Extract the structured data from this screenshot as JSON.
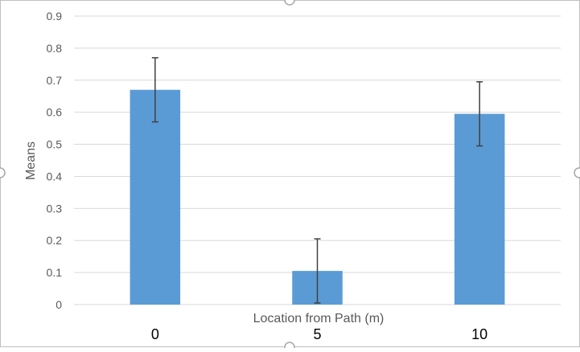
{
  "chart_data": {
    "type": "bar",
    "categories": [
      "0",
      "5",
      "10"
    ],
    "values": [
      0.67,
      0.105,
      0.595
    ],
    "error": [
      0.1,
      0.1,
      0.1
    ],
    "title": "",
    "xlabel": "Location from Path (m)",
    "ylabel": "Means",
    "ylim": [
      0,
      0.9
    ],
    "yticks": [
      "0",
      "0.1",
      "0.2",
      "0.3",
      "0.4",
      "0.5",
      "0.6",
      "0.7",
      "0.8",
      "0.9"
    ],
    "grid": true,
    "legend": "none"
  },
  "colors": {
    "bar": "#5b9bd5",
    "grid": "#d9d9d9",
    "error_bar": "#404040",
    "axis_text": "#595959",
    "category_text": "#000000",
    "frame": "#bfbfbf",
    "handle": "#a6a6a6"
  }
}
